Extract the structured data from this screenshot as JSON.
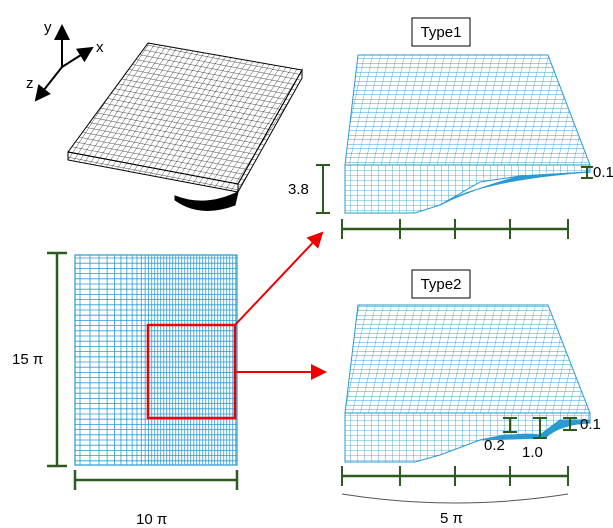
{
  "axes": {
    "y": "y",
    "x": "x",
    "z": "z"
  },
  "panels": [
    {
      "title": "Type1",
      "dimensions": [
        "3.8",
        "0.1"
      ]
    },
    {
      "title": "Type2",
      "dimensions": [
        "0.2",
        "1.0",
        "0.1"
      ]
    }
  ],
  "domain": {
    "height": "15 π",
    "width": "10 π",
    "detail_width": "5 π"
  }
}
